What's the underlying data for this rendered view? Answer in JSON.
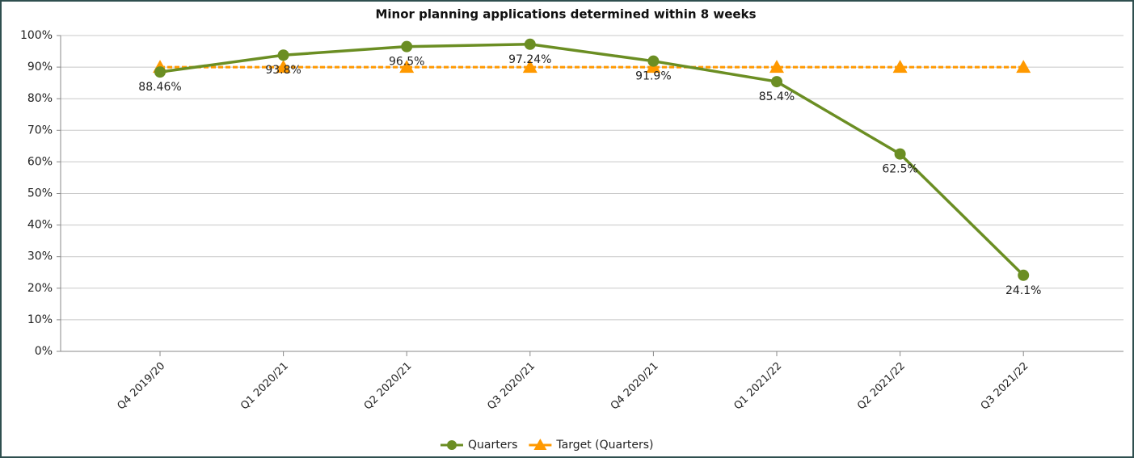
{
  "chart_data": {
    "type": "line",
    "title": "Minor planning applications determined within 8 weeks",
    "categories": [
      "Q4 2019/20",
      "Q1 2020/21",
      "Q2 2020/21",
      "Q3 2020/21",
      "Q4 2020/21",
      "Q1 2021/22",
      "Q2 2021/22",
      "Q3 2021/22"
    ],
    "series": [
      {
        "name": "Quarters",
        "color": "#6b8e23",
        "marker": "circle",
        "values": [
          88.46,
          93.8,
          96.5,
          97.24,
          91.9,
          85.4,
          62.5,
          24.1
        ],
        "value_labels": [
          "88.46%",
          "93.8%",
          "96.5%",
          "97.24%",
          "91.9%",
          "85.4%",
          "62.5%",
          "24.1%"
        ]
      },
      {
        "name": "Target (Quarters)",
        "color": "#ff9900",
        "marker": "triangle",
        "dashed": true,
        "values": [
          90,
          90,
          90,
          90,
          90,
          90,
          90,
          90
        ]
      }
    ],
    "ylim": [
      0,
      100
    ],
    "yticks": [
      {
        "value": 0,
        "label": "0%"
      },
      {
        "value": 10,
        "label": "10%"
      },
      {
        "value": 20,
        "label": "20%"
      },
      {
        "value": 30,
        "label": "30%"
      },
      {
        "value": 40,
        "label": "40%"
      },
      {
        "value": 50,
        "label": "50%"
      },
      {
        "value": 60,
        "label": "60%"
      },
      {
        "value": 70,
        "label": "70%"
      },
      {
        "value": 80,
        "label": "80%"
      },
      {
        "value": 90,
        "label": "90%"
      },
      {
        "value": 100,
        "label": "100%"
      }
    ],
    "grid": true,
    "legend": "bottom"
  }
}
